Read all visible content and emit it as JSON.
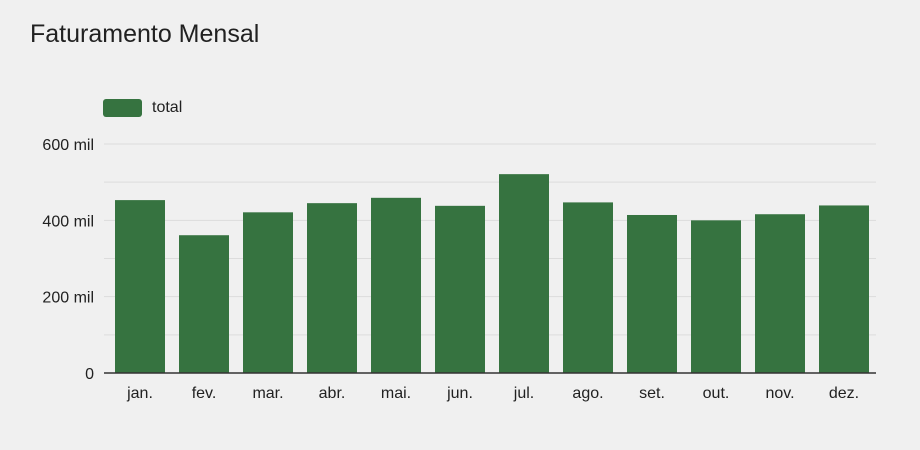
{
  "chart_data": {
    "type": "bar",
    "title": "Faturamento Mensal",
    "categories": [
      "jan.",
      "fev.",
      "mar.",
      "abr.",
      "mai.",
      "jun.",
      "jul.",
      "ago.",
      "set.",
      "out.",
      "nov.",
      "dez."
    ],
    "series": [
      {
        "name": "total",
        "color": "#367340",
        "values": [
          453000,
          361000,
          421000,
          445000,
          459000,
          438000,
          521000,
          447000,
          414000,
          400000,
          416000,
          439000
        ]
      }
    ],
    "y_ticks": [
      {
        "value": 0,
        "label": "0"
      },
      {
        "value": 200000,
        "label": "200 mil"
      },
      {
        "value": 400000,
        "label": "400 mil"
      },
      {
        "value": 600000,
        "label": "600 mil"
      }
    ],
    "ylim": [
      0,
      600000
    ],
    "grid_step": 100000,
    "legend_position": "top-left",
    "grid": true,
    "colors": {
      "grid": "#dcdcdc",
      "baseline": "#333333",
      "background": "#f0f0f0"
    }
  }
}
